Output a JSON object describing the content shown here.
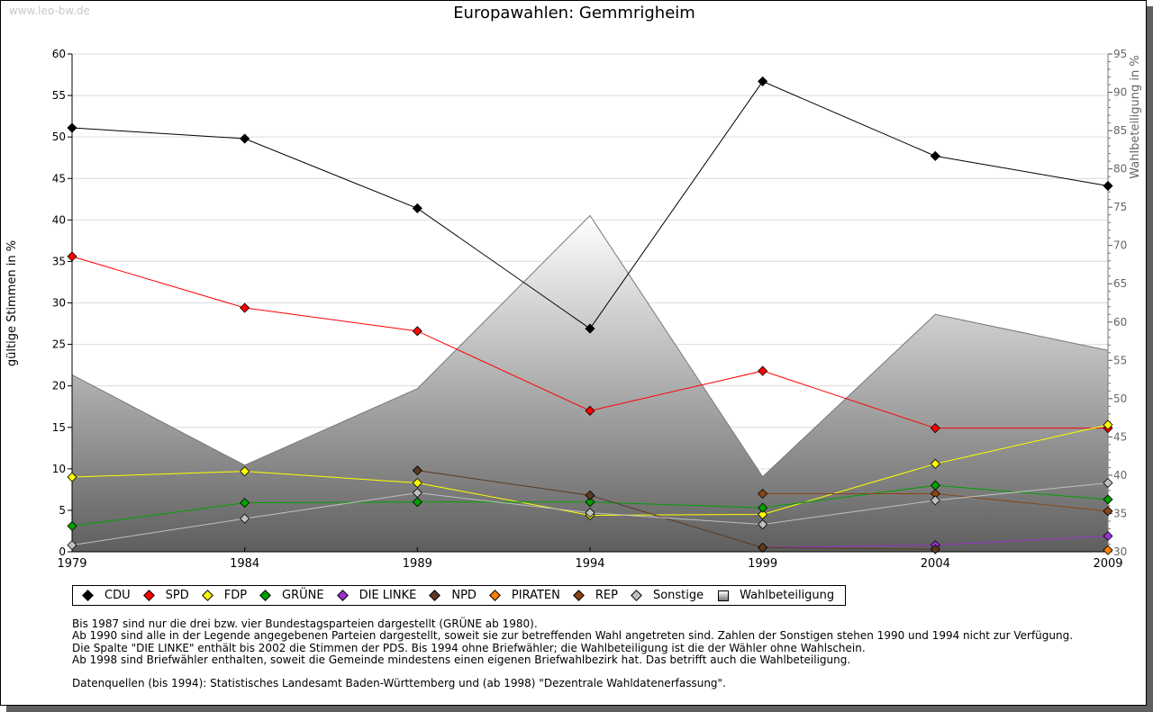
{
  "watermark": "www.leo-bw.de",
  "chart_data": {
    "type": "line",
    "title": "Europawahlen: Gemmrigheim",
    "ylabel": "gültige Stimmen in %",
    "y2label": "Wahlbeteiligung in %",
    "ylim": [
      0,
      60
    ],
    "y2lim": [
      30,
      95
    ],
    "yticks": [
      "0",
      "5",
      "10",
      "15",
      "20",
      "25",
      "30",
      "35",
      "40",
      "45",
      "50",
      "55",
      "60"
    ],
    "y2ticks": [
      "30",
      "35",
      "40",
      "45",
      "50",
      "55",
      "60",
      "65",
      "70",
      "75",
      "80",
      "85",
      "90",
      "95"
    ],
    "categories": [
      "1979",
      "1984",
      "1989",
      "1994",
      "1999",
      "2004",
      "2009"
    ],
    "series": [
      {
        "name": "CDU",
        "color": "#000000",
        "values": [
          51.1,
          49.8,
          41.4,
          26.9,
          56.7,
          47.7,
          44.1
        ]
      },
      {
        "name": "SPD",
        "color": "#ff0000",
        "values": [
          35.6,
          29.4,
          26.6,
          17.0,
          21.8,
          14.9,
          14.9
        ]
      },
      {
        "name": "FDP",
        "color": "#ffff00",
        "values": [
          9.0,
          9.7,
          8.3,
          4.4,
          4.5,
          10.6,
          15.3
        ]
      },
      {
        "name": "GRÜNE",
        "color": "#00a000",
        "values": [
          3.1,
          5.9,
          6.0,
          6.0,
          5.3,
          8.0,
          6.3
        ]
      },
      {
        "name": "DIE LINKE",
        "color": "#9933cc",
        "values": [
          null,
          null,
          null,
          null,
          0.5,
          0.8,
          1.9
        ]
      },
      {
        "name": "NPD",
        "color": "#5a3a22",
        "values": [
          null,
          null,
          9.8,
          6.8,
          0.5,
          0.3,
          null
        ]
      },
      {
        "name": "PIRATEN",
        "color": "#ff8000",
        "values": [
          null,
          null,
          null,
          null,
          null,
          null,
          0.2
        ]
      },
      {
        "name": "REP",
        "color": "#8b4513",
        "values": [
          null,
          null,
          null,
          null,
          7.0,
          7.0,
          4.9
        ]
      },
      {
        "name": "Sonstige",
        "color": "#c0c0c0",
        "values": [
          0.8,
          4.0,
          7.1,
          4.7,
          3.3,
          6.2,
          8.3
        ]
      }
    ],
    "turnout": {
      "name": "Wahlbeteiligung",
      "values": [
        53.1,
        41.3,
        51.3,
        73.9,
        39.8,
        61.0,
        56.3
      ]
    },
    "grid": true,
    "legend": "bottom"
  },
  "notes": [
    "Bis 1987 sind nur die drei bzw. vier Bundestagsparteien dargestellt (GRÜNE ab 1980).",
    "Ab 1990 sind alle in der Legende angegebenen Parteien dargestellt, soweit sie zur betreffenden Wahl angetreten sind. Zahlen der Sonstigen stehen 1990 und 1994 nicht zur Verfügung.",
    "Die Spalte \"DIE LINKE\" enthält bis 2002 die Stimmen der PDS. Bis 1994 ohne Briefwähler; die Wahlbeteiligung ist die der Wähler ohne Wahlschein.",
    "Ab 1998 sind Briefwähler enthalten, soweit die Gemeinde mindestens einen eigenen Briefwahlbezirk hat. Das betrifft auch die Wahlbeteiligung.",
    "",
    "Datenquellen (bis 1994): Statistisches Landesamt Baden-Württemberg und (ab 1998) \"Dezentrale Wahldatenerfassung\"."
  ]
}
